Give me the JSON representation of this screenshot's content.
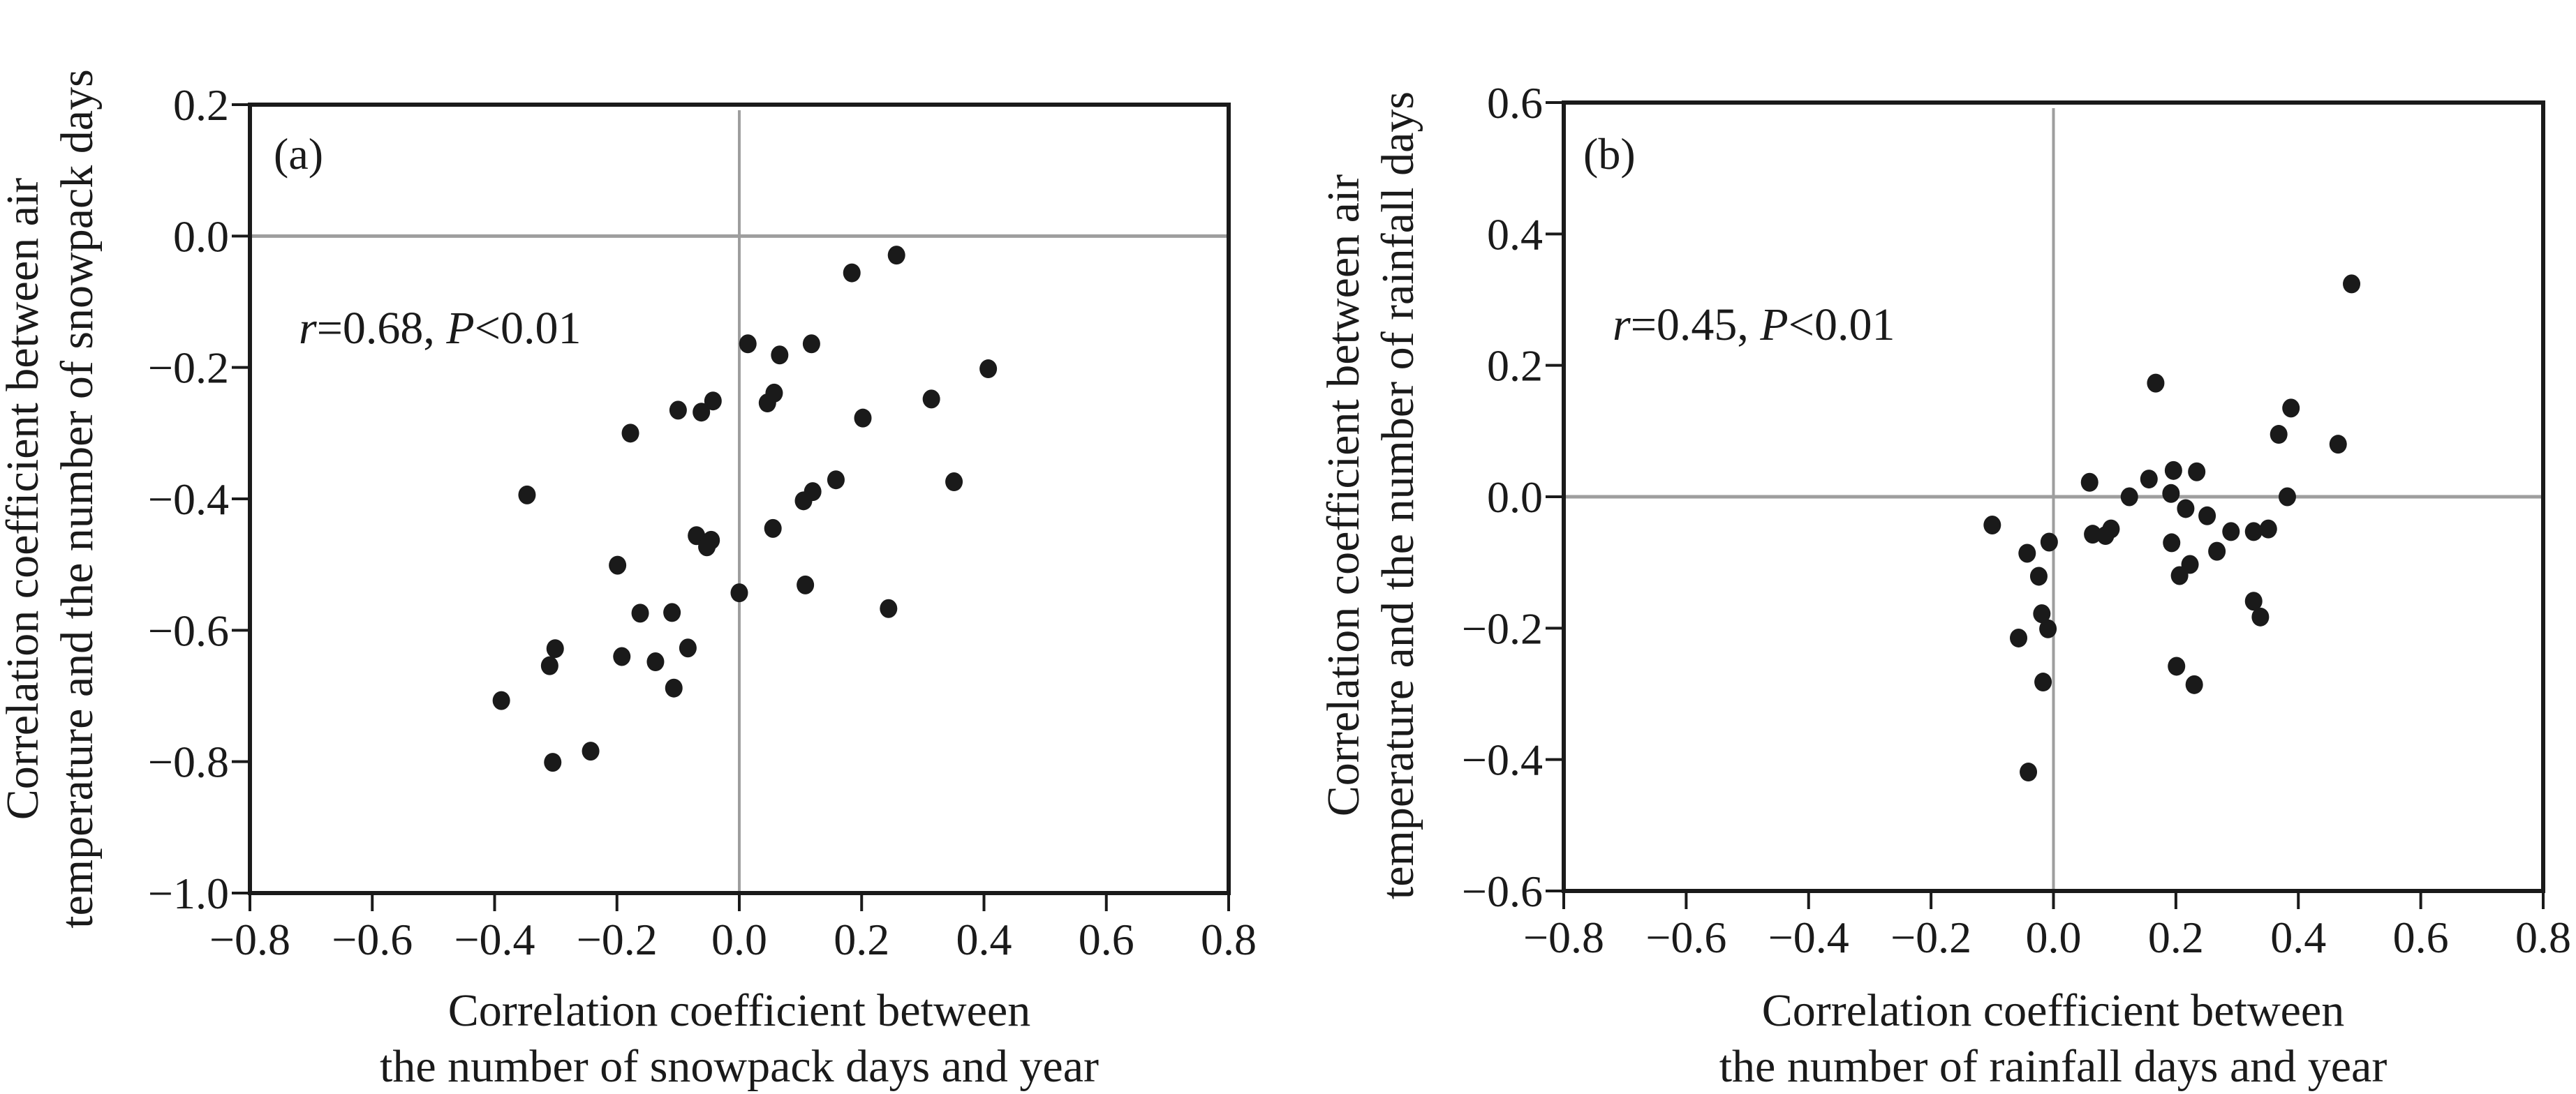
{
  "colors": {
    "axis": "#1a1a1a",
    "reference_line": "#9e9e9e",
    "point": "#1a1a1a"
  },
  "chart_data": [
    {
      "type": "scatter",
      "panel_label": "(a)",
      "annotation": {
        "r_symbol": "r",
        "r_value": "=0.68, ",
        "p_symbol": "P",
        "p_value": "<0.01"
      },
      "xlabel": [
        "Correlation coefficient between",
        "the number of snowpack days and year"
      ],
      "ylabel": [
        "Correlation coefficient between air",
        "temperature and the number of snowpack days"
      ],
      "xlim": [
        -0.8,
        0.8
      ],
      "ylim": [
        -1.0,
        0.2
      ],
      "xticks": [
        "−0.8",
        "−0.6",
        "−0.4",
        "−0.2",
        "0.0",
        "0.2",
        "0.4",
        "0.6",
        "0.8"
      ],
      "xtick_values": [
        -0.8,
        -0.6,
        -0.4,
        -0.2,
        0.0,
        0.2,
        0.4,
        0.6,
        0.8
      ],
      "yticks": [
        "0.2",
        "0.0",
        "−0.2",
        "−0.4",
        "−0.6",
        "−0.8",
        "−1.0"
      ],
      "ytick_values": [
        0.2,
        0.0,
        -0.2,
        -0.4,
        -0.6,
        -0.8,
        -1.0
      ],
      "reference_lines": {
        "x": 0.0,
        "y": 0.0
      },
      "grid": false,
      "points": [
        [
          0.257,
          -0.029
        ],
        [
          0.184,
          -0.056
        ],
        [
          0.014,
          -0.164
        ],
        [
          0.066,
          -0.181
        ],
        [
          0.118,
          -0.164
        ],
        [
          0.407,
          -0.202
        ],
        [
          0.314,
          -0.248
        ],
        [
          0.046,
          -0.254
        ],
        [
          0.057,
          -0.239
        ],
        [
          -0.043,
          -0.251
        ],
        [
          -0.062,
          -0.268
        ],
        [
          -0.1,
          -0.265
        ],
        [
          -0.178,
          -0.3
        ],
        [
          0.202,
          -0.277
        ],
        [
          -0.347,
          -0.394
        ],
        [
          0.158,
          -0.371
        ],
        [
          0.351,
          -0.374
        ],
        [
          0.12,
          -0.389
        ],
        [
          0.105,
          -0.403
        ],
        [
          0.055,
          -0.445
        ],
        [
          -0.07,
          -0.456
        ],
        [
          -0.046,
          -0.463
        ],
        [
          -0.053,
          -0.473
        ],
        [
          -0.199,
          -0.501
        ],
        [
          0.108,
          -0.531
        ],
        [
          0.0,
          -0.543
        ],
        [
          0.244,
          -0.567
        ],
        [
          -0.162,
          -0.574
        ],
        [
          -0.11,
          -0.573
        ],
        [
          -0.301,
          -0.628
        ],
        [
          -0.084,
          -0.627
        ],
        [
          -0.192,
          -0.64
        ],
        [
          -0.137,
          -0.648
        ],
        [
          -0.31,
          -0.654
        ],
        [
          -0.107,
          -0.688
        ],
        [
          -0.389,
          -0.707
        ],
        [
          -0.243,
          -0.784
        ],
        [
          -0.305,
          -0.801
        ]
      ]
    },
    {
      "type": "scatter",
      "panel_label": "(b)",
      "annotation": {
        "r_symbol": "r",
        "r_value": "=0.45, ",
        "p_symbol": "P",
        "p_value": "<0.01"
      },
      "xlabel": [
        "Correlation coefficient between",
        "the number of rainfall days and year"
      ],
      "ylabel": [
        "Correlation coefficient between air",
        "temperature and the number of rainfall days"
      ],
      "xlim": [
        -0.8,
        0.8
      ],
      "ylim": [
        -0.6,
        0.6
      ],
      "xticks": [
        "−0.8",
        "−0.6",
        "−0.4",
        "−0.2",
        "0.0",
        "0.2",
        "0.4",
        "0.6",
        "0.8"
      ],
      "xtick_values": [
        -0.8,
        -0.6,
        -0.4,
        -0.2,
        0.0,
        0.2,
        0.4,
        0.6,
        0.8
      ],
      "yticks": [
        "0.6",
        "0.4",
        "0.2",
        "0.0",
        "−0.2",
        "−0.4",
        "−0.6"
      ],
      "ytick_values": [
        0.6,
        0.4,
        0.2,
        0.0,
        -0.2,
        -0.4,
        -0.6
      ],
      "reference_lines": {
        "x": 0.0,
        "y": 0.0
      },
      "grid": false,
      "points": [
        [
          -0.1,
          -0.043
        ],
        [
          -0.043,
          -0.086
        ],
        [
          -0.007,
          -0.069
        ],
        [
          -0.024,
          -0.121
        ],
        [
          -0.019,
          -0.178
        ],
        [
          -0.009,
          -0.201
        ],
        [
          -0.057,
          -0.215
        ],
        [
          -0.017,
          -0.282
        ],
        [
          -0.041,
          -0.419
        ],
        [
          0.059,
          0.022
        ],
        [
          0.064,
          -0.057
        ],
        [
          0.085,
          -0.059
        ],
        [
          0.094,
          -0.049
        ],
        [
          0.124,
          0.0
        ],
        [
          0.156,
          0.027
        ],
        [
          0.167,
          0.173
        ],
        [
          0.192,
          0.005
        ],
        [
          0.196,
          0.04
        ],
        [
          0.193,
          -0.07
        ],
        [
          0.216,
          -0.018
        ],
        [
          0.234,
          0.038
        ],
        [
          0.223,
          -0.103
        ],
        [
          0.206,
          -0.12
        ],
        [
          0.251,
          -0.029
        ],
        [
          0.267,
          -0.083
        ],
        [
          0.29,
          -0.053
        ],
        [
          0.201,
          -0.258
        ],
        [
          0.23,
          -0.286
        ],
        [
          0.327,
          -0.053
        ],
        [
          0.351,
          -0.049
        ],
        [
          0.327,
          -0.159
        ],
        [
          0.338,
          -0.183
        ],
        [
          0.368,
          0.095
        ],
        [
          0.382,
          0.0
        ],
        [
          0.388,
          0.135
        ],
        [
          0.465,
          0.08
        ],
        [
          0.487,
          0.324
        ]
      ]
    }
  ]
}
